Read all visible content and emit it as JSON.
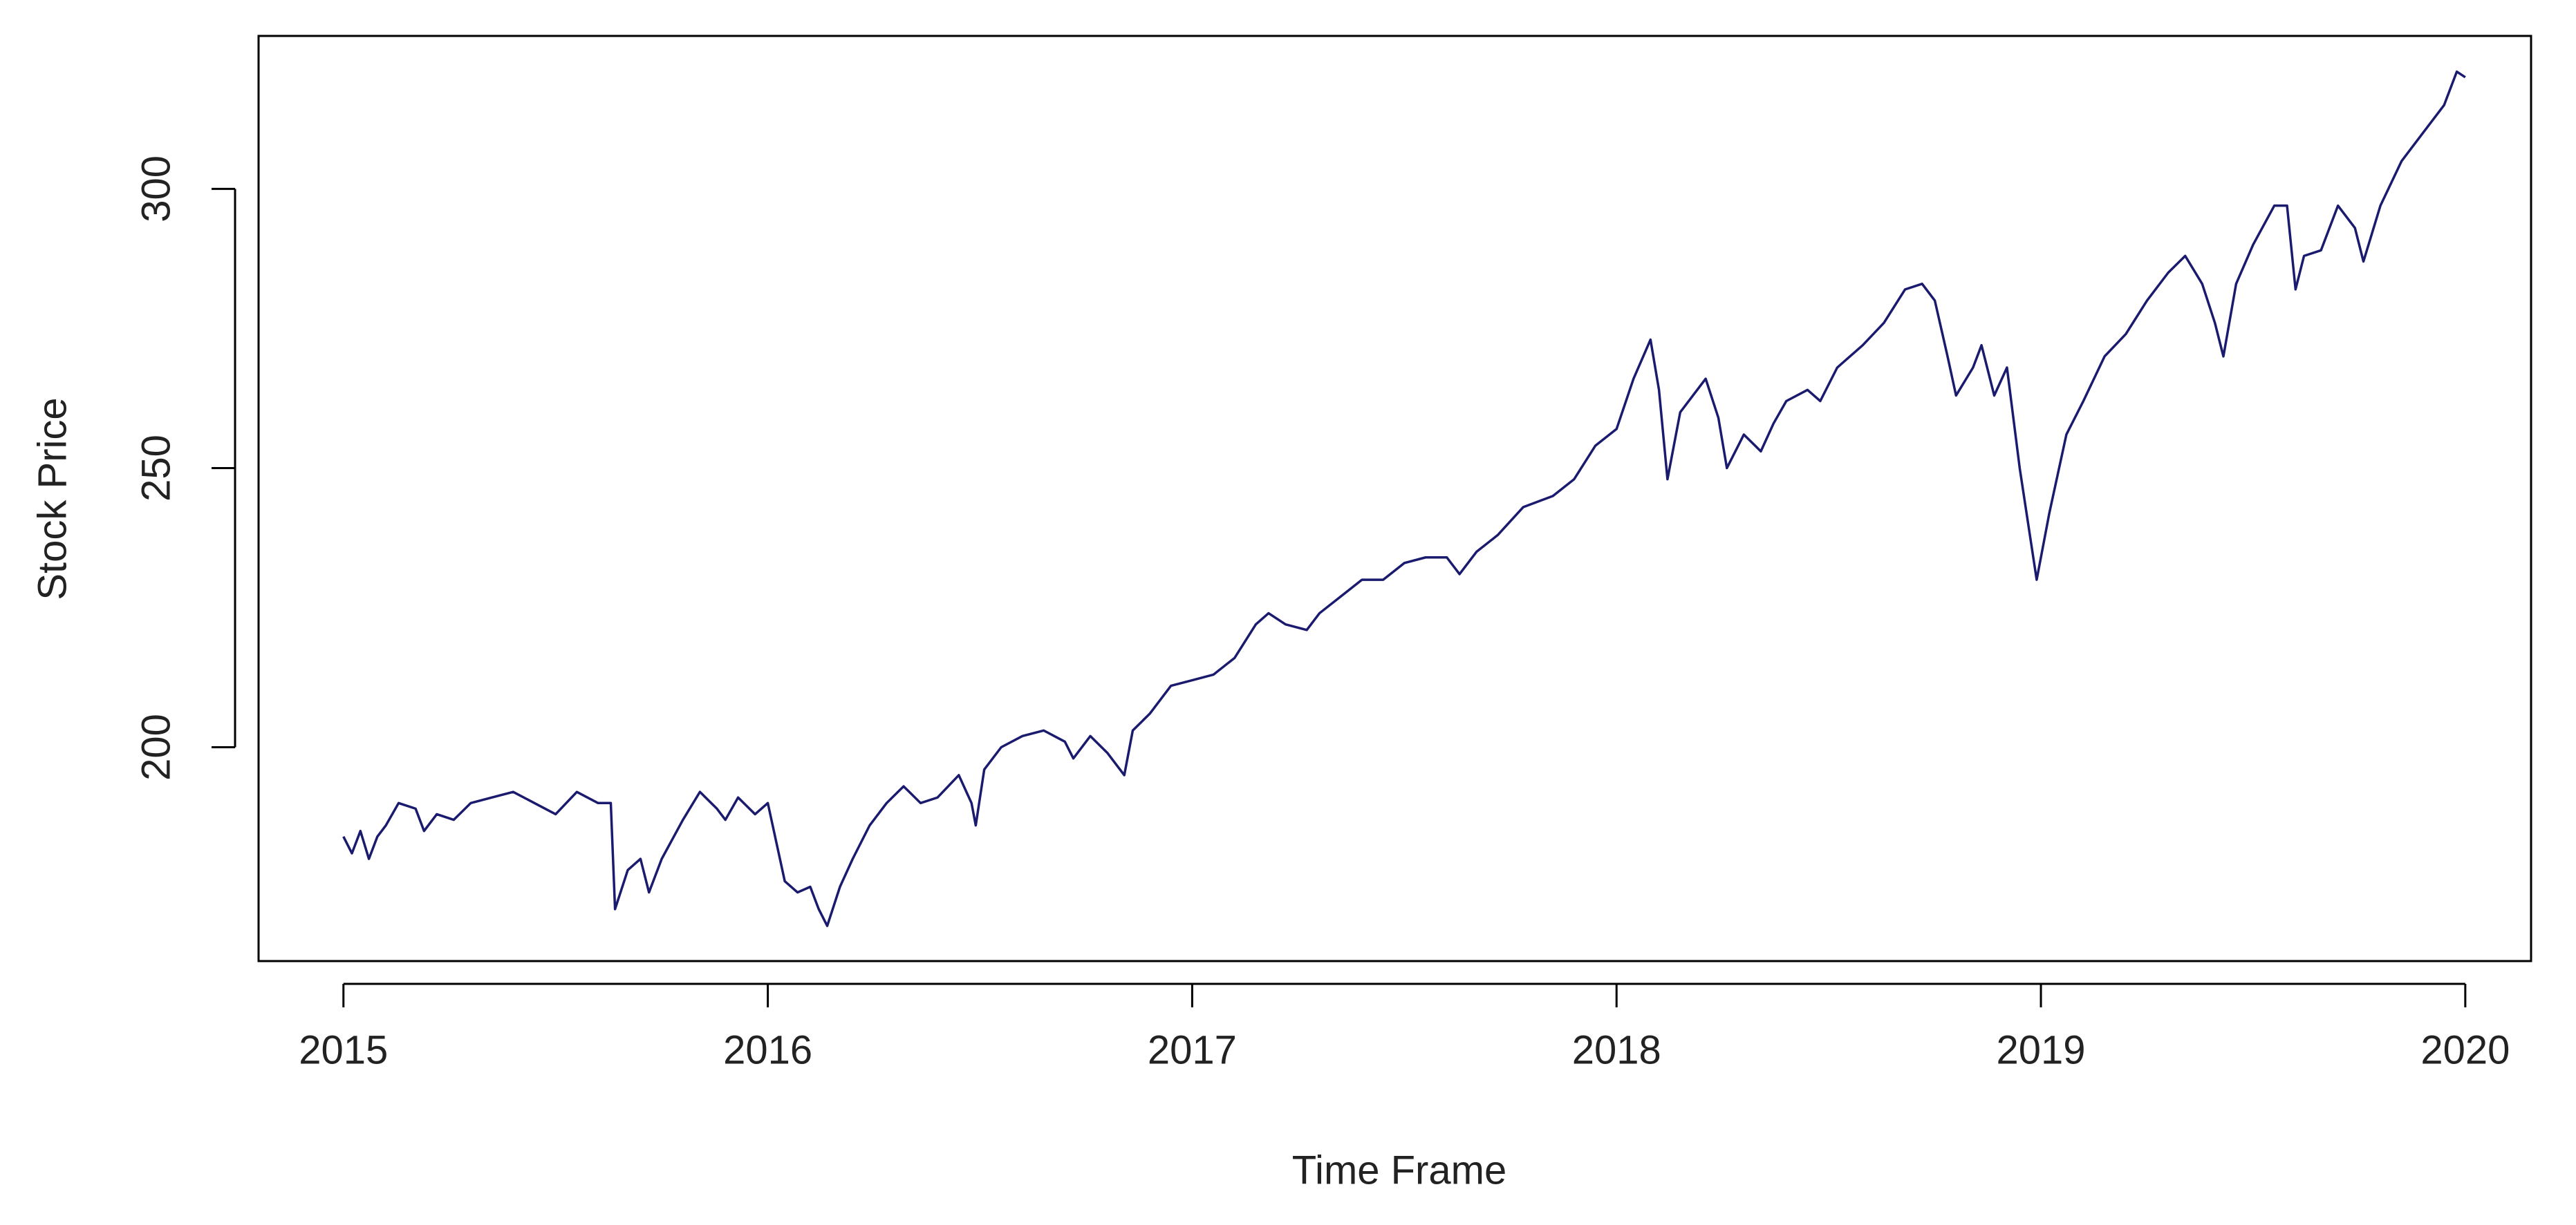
{
  "chart_data": {
    "type": "line",
    "xlabel": "Time Frame",
    "ylabel": "Stock Price",
    "x": [
      2015.0,
      2015.02,
      2015.04,
      2015.06,
      2015.08,
      2015.1,
      2015.13,
      2015.17,
      2015.19,
      2015.22,
      2015.26,
      2015.3,
      2015.35,
      2015.4,
      2015.45,
      2015.5,
      2015.55,
      2015.6,
      2015.63,
      2015.64,
      2015.67,
      2015.7,
      2015.72,
      2015.75,
      2015.8,
      2015.84,
      2015.88,
      2015.9,
      2015.93,
      2015.97,
      2016.0,
      2016.02,
      2016.04,
      2016.07,
      2016.1,
      2016.12,
      2016.14,
      2016.17,
      2016.2,
      2016.24,
      2016.28,
      2016.32,
      2016.36,
      2016.4,
      2016.45,
      2016.48,
      2016.49,
      2016.51,
      2016.55,
      2016.6,
      2016.65,
      2016.7,
      2016.72,
      2016.76,
      2016.8,
      2016.84,
      2016.86,
      2016.9,
      2016.95,
      2017.0,
      2017.05,
      2017.1,
      2017.15,
      2017.18,
      2017.22,
      2017.27,
      2017.3,
      2017.35,
      2017.4,
      2017.45,
      2017.5,
      2017.55,
      2017.6,
      2017.63,
      2017.67,
      2017.72,
      2017.78,
      2017.85,
      2017.9,
      2017.95,
      2018.0,
      2018.04,
      2018.08,
      2018.1,
      2018.12,
      2018.15,
      2018.18,
      2018.21,
      2018.24,
      2018.26,
      2018.3,
      2018.34,
      2018.37,
      2018.4,
      2018.45,
      2018.48,
      2018.52,
      2018.58,
      2018.63,
      2018.68,
      2018.72,
      2018.75,
      2018.78,
      2018.8,
      2018.84,
      2018.86,
      2018.89,
      2018.92,
      2018.95,
      2018.99,
      2019.02,
      2019.06,
      2019.1,
      2019.15,
      2019.2,
      2019.25,
      2019.3,
      2019.34,
      2019.38,
      2019.41,
      2019.43,
      2019.46,
      2019.5,
      2019.55,
      2019.58,
      2019.6,
      2019.62,
      2019.66,
      2019.7,
      2019.74,
      2019.76,
      2019.8,
      2019.85,
      2019.9,
      2019.95,
      2019.98,
      2020.0
    ],
    "series": [
      {
        "name": "Stock Price",
        "color": "#1a1a6e",
        "values": [
          184,
          181,
          185,
          180,
          184,
          186,
          190,
          189,
          185,
          188,
          187,
          190,
          191,
          192,
          190,
          188,
          192,
          190,
          190,
          171,
          178,
          180,
          174,
          180,
          187,
          192,
          189,
          187,
          191,
          188,
          190,
          183,
          176,
          174,
          175,
          171,
          168,
          175,
          180,
          186,
          190,
          193,
          190,
          191,
          195,
          190,
          186,
          196,
          200,
          202,
          203,
          201,
          198,
          202,
          199,
          195,
          203,
          206,
          211,
          212,
          213,
          216,
          222,
          224,
          222,
          221,
          224,
          227,
          230,
          230,
          233,
          234,
          234,
          231,
          235,
          238,
          243,
          245,
          248,
          254,
          257,
          266,
          273,
          264,
          248,
          260,
          263,
          266,
          259,
          250,
          256,
          253,
          258,
          262,
          264,
          262,
          268,
          272,
          276,
          282,
          283,
          280,
          270,
          263,
          268,
          272,
          263,
          268,
          250,
          230,
          242,
          256,
          262,
          270,
          274,
          280,
          285,
          288,
          283,
          276,
          270,
          283,
          290,
          297,
          297,
          282,
          288,
          289,
          297,
          293,
          287,
          297,
          305,
          310,
          315,
          321,
          320
        ]
      }
    ],
    "xlim": [
      2014.8,
      2020.155
    ],
    "ylim": [
      161.7,
      327.4
    ],
    "xticks": [
      2015,
      2016,
      2017,
      2018,
      2019,
      2020
    ],
    "yticks": [
      200,
      250,
      300
    ]
  }
}
